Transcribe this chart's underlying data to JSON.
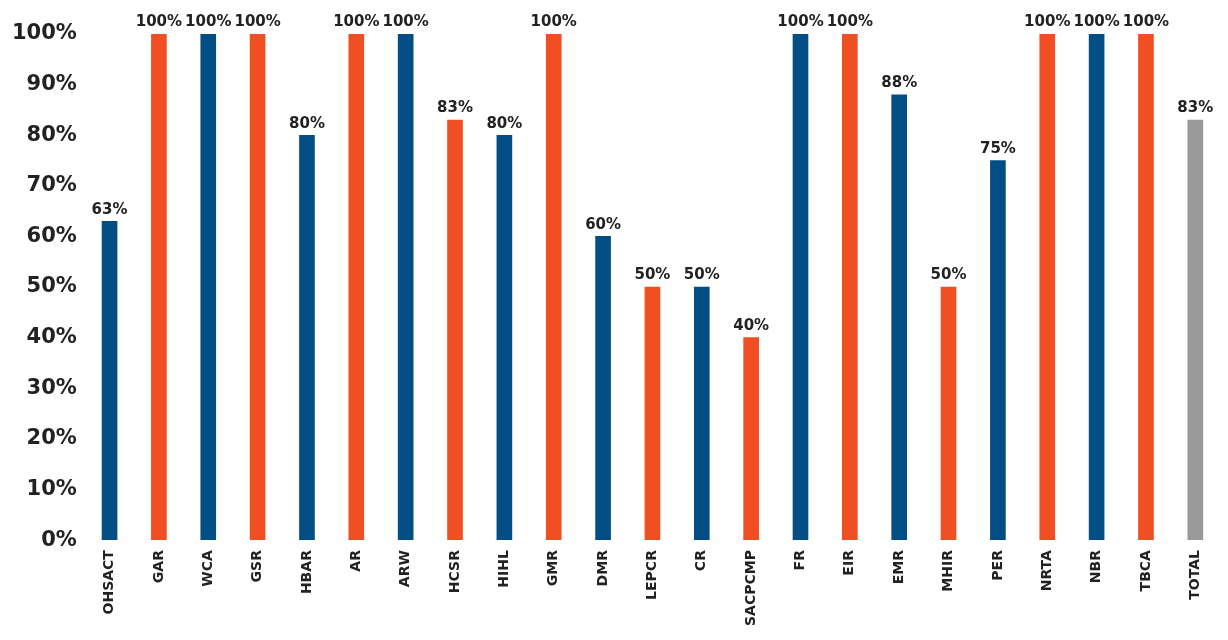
{
  "chart_data": {
    "type": "bar",
    "categories": [
      "OHSACT",
      "GAR",
      "WCA",
      "GSR",
      "HBAR",
      "AR",
      "ARW",
      "HCSR",
      "HIHL",
      "GMR",
      "DMR",
      "LEPCR",
      "CR",
      "SACPCMP",
      "FR",
      "EIR",
      "EMR",
      "MHIR",
      "PER",
      "NRTA",
      "NBR",
      "TBCA",
      "TOTAL"
    ],
    "values": [
      63,
      100,
      100,
      100,
      80,
      100,
      100,
      83,
      80,
      100,
      60,
      50,
      50,
      40,
      100,
      100,
      88,
      50,
      75,
      100,
      100,
      100,
      83
    ],
    "colors": [
      "#034e84",
      "#f04e23",
      "#034e84",
      "#f04e23",
      "#034e84",
      "#f04e23",
      "#034e84",
      "#f04e23",
      "#034e84",
      "#f04e23",
      "#034e84",
      "#f04e23",
      "#034e84",
      "#f04e23",
      "#034e84",
      "#f04e23",
      "#034e84",
      "#f04e23",
      "#034e84",
      "#f04e23",
      "#034e84",
      "#f04e23",
      "#999999"
    ],
    "value_labels": [
      "63%",
      "100%",
      "100%",
      "100%",
      "80%",
      "100%",
      "100%",
      "83%",
      "80%",
      "100%",
      "60%",
      "50%",
      "50%",
      "40%",
      "100%",
      "100%",
      "88%",
      "50%",
      "75%",
      "100%",
      "100%",
      "100%",
      "83%"
    ],
    "ylim": [
      0,
      100
    ],
    "yticks": [
      {
        "value": 0,
        "label": "0%"
      },
      {
        "value": 10,
        "label": "10%"
      },
      {
        "value": 20,
        "label": "20%"
      },
      {
        "value": 30,
        "label": "30%"
      },
      {
        "value": 40,
        "label": "40%"
      },
      {
        "value": 50,
        "label": "50%"
      },
      {
        "value": 60,
        "label": "60%"
      },
      {
        "value": 70,
        "label": "70%"
      },
      {
        "value": 80,
        "label": "80%"
      },
      {
        "value": 90,
        "label": "90%"
      },
      {
        "value": 100,
        "label": "100%"
      }
    ],
    "grid": false,
    "legend": false
  }
}
